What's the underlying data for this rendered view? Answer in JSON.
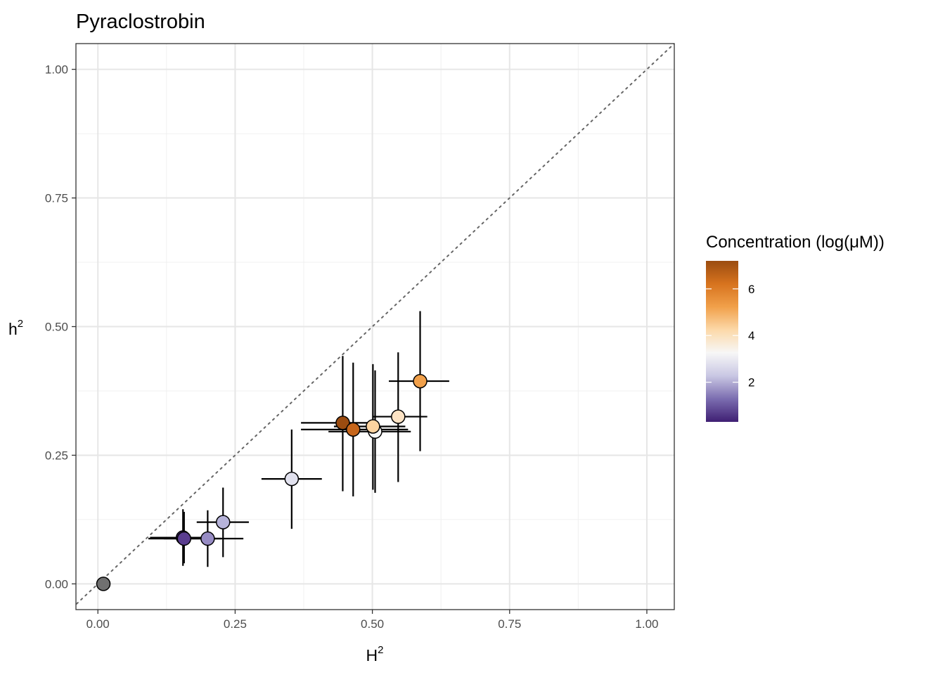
{
  "chart_data": {
    "type": "scatter",
    "title": "Pyraclostrobin",
    "xlabel": "H",
    "xlabel_sup": "2",
    "ylabel": "h",
    "ylabel_sup": "2",
    "xlim": [
      -0.04,
      1.05
    ],
    "ylim": [
      -0.05,
      1.05
    ],
    "xticks": [
      0.0,
      0.25,
      0.5,
      0.75,
      1.0
    ],
    "yticks": [
      0.0,
      0.25,
      0.5,
      0.75,
      1.0
    ],
    "xtick_labels": [
      "0.00",
      "0.25",
      "0.50",
      "0.75",
      "1.00"
    ],
    "ytick_labels": [
      "0.00",
      "0.25",
      "0.50",
      "0.75",
      "1.00"
    ],
    "grid": true,
    "reference_line": "y = x (dotted)",
    "legend": {
      "title": "Concentration (log(μM))",
      "placement": "right",
      "range": [
        0.3,
        7.2
      ],
      "ticks": [
        2,
        4,
        6
      ],
      "tick_labels": [
        "2",
        "4",
        "6"
      ],
      "colors": [
        "#3f1f73",
        "#7b6db0",
        "#c9c7e3",
        "#f7f7f7",
        "#fcd9a9",
        "#f1a04a",
        "#d7731e",
        "#9b4c10"
      ]
    },
    "points": [
      {
        "x": 0.01,
        "y": 0.0,
        "xerr": [
          0.01,
          0.01
        ],
        "yerr": [
          0.0,
          0.0
        ],
        "concentration": null,
        "color": "#707070"
      },
      {
        "x": 0.155,
        "y": 0.09,
        "xerr": [
          0.095,
          0.21
        ],
        "yerr": [
          0.035,
          0.145
        ],
        "concentration": 0.5,
        "color": "#4a2c80"
      },
      {
        "x": 0.157,
        "y": 0.088,
        "xerr": [
          0.092,
          0.225
        ],
        "yerr": [
          0.04,
          0.14
        ],
        "concentration": 1.0,
        "color": "#5a3d8f"
      },
      {
        "x": 0.2,
        "y": 0.088,
        "xerr": [
          0.12,
          0.265
        ],
        "yerr": [
          0.033,
          0.143
        ],
        "concentration": 1.8,
        "color": "#978cc4"
      },
      {
        "x": 0.228,
        "y": 0.12,
        "xerr": [
          0.18,
          0.275
        ],
        "yerr": [
          0.052,
          0.187
        ],
        "concentration": 2.3,
        "color": "#b6b3d9"
      },
      {
        "x": 0.353,
        "y": 0.204,
        "xerr": [
          0.298,
          0.408
        ],
        "yerr": [
          0.107,
          0.3
        ],
        "concentration": 3.3,
        "color": "#e2e2ef"
      },
      {
        "x": 0.446,
        "y": 0.313,
        "xerr": [
          0.37,
          0.51
        ],
        "yerr": [
          0.18,
          0.443
        ],
        "concentration": 7.2,
        "color": "#9b4c10"
      },
      {
        "x": 0.465,
        "y": 0.3,
        "xerr": [
          0.37,
          0.565
        ],
        "yerr": [
          0.17,
          0.43
        ],
        "concentration": 6.6,
        "color": "#c7661b"
      },
      {
        "x": 0.505,
        "y": 0.296,
        "xerr": [
          0.42,
          0.57
        ],
        "yerr": [
          0.177,
          0.415
        ],
        "concentration": 4.0,
        "color": "#f7f7f7"
      },
      {
        "x": 0.501,
        "y": 0.306,
        "xerr": [
          0.43,
          0.56
        ],
        "yerr": [
          0.183,
          0.427
        ],
        "concentration": 4.9,
        "color": "#fcd3a0"
      },
      {
        "x": 0.547,
        "y": 0.325,
        "xerr": [
          0.5,
          0.6
        ],
        "yerr": [
          0.198,
          0.45
        ],
        "concentration": 4.5,
        "color": "#fde3c4"
      },
      {
        "x": 0.587,
        "y": 0.394,
        "xerr": [
          0.53,
          0.64
        ],
        "yerr": [
          0.258,
          0.53
        ],
        "concentration": 6.1,
        "color": "#f1a04a"
      }
    ]
  }
}
